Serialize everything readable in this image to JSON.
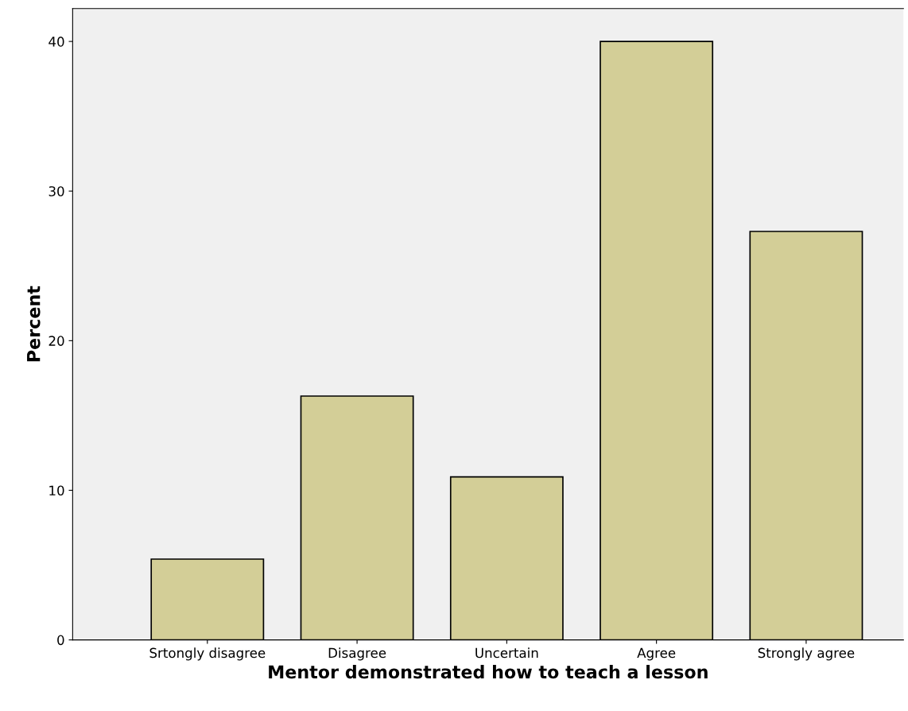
{
  "chart_data": {
    "type": "bar",
    "xlabel": "Mentor demonstrated how to teach a lesson",
    "ylabel": "Percent",
    "categories": [
      "Srtongly disagree",
      "Disagree",
      "Uncertain",
      "Agree",
      "Strongly agree"
    ],
    "values": [
      5.4,
      16.3,
      10.9,
      40.0,
      27.3
    ],
    "color": "#d3ce97",
    "ylim": [
      0,
      42.2
    ],
    "yticks": [
      0,
      10,
      20,
      30,
      40
    ],
    "grid": false
  }
}
